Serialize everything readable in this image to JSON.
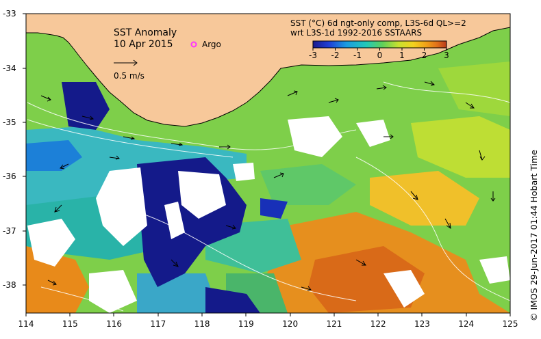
{
  "title": "SST Anomaly",
  "date": "10 Apr 2015",
  "argo_label": "Argo",
  "scale_label": "0.5 m/s",
  "colorbar": {
    "line1": "SST (°C) 6d ngt-only comp, L3S-6d QL>=2",
    "line2": "wrt L3S-1d 1992-2016 SSTAARS",
    "ticks": [
      "-3",
      "-2",
      "-1",
      "0",
      "1",
      "2",
      "3"
    ],
    "colors": [
      "#1a1a8c",
      "#1f3fd6",
      "#1c9be0",
      "#22c9b8",
      "#5fd05a",
      "#c8e030",
      "#f2d21f",
      "#f0a018",
      "#e0701a",
      "#b83a1a"
    ]
  },
  "x_axis": {
    "ticks": [
      "114",
      "115",
      "116",
      "117",
      "118",
      "119",
      "120",
      "121",
      "122",
      "123",
      "124",
      "125"
    ]
  },
  "y_axis": {
    "ticks": [
      "-33",
      "-34",
      "-35",
      "-36",
      "-37",
      "-38"
    ]
  },
  "credit": "©  IMOS 29-Jun-2017 01:44 Hobart Time",
  "colors": {
    "land": "#f7c89a",
    "frame": "#000000",
    "argo": "#ff33ff"
  }
}
